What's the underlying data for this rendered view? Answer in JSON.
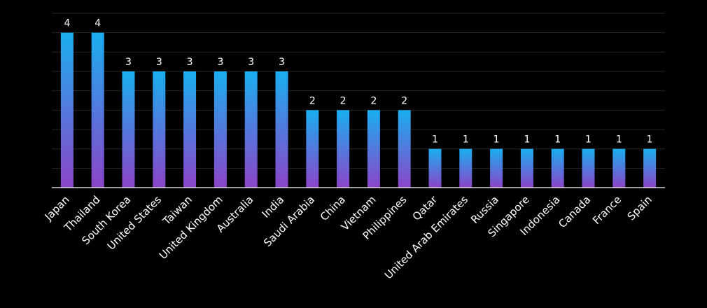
{
  "chart_data": {
    "type": "bar",
    "categories": [
      "Japan",
      "Thailand",
      "South Korea",
      "United States",
      "Taiwan",
      "United Kingdom",
      "Australia",
      "India",
      "Saudi Arabia",
      "China",
      "Vietnam",
      "Philippines",
      "Qatar",
      "United Arab Emirates",
      "Russia",
      "Singapore",
      "Indonesia",
      "Canada",
      "France",
      "Spain"
    ],
    "values": [
      4,
      4,
      3,
      3,
      3,
      3,
      3,
      3,
      2,
      2,
      2,
      2,
      1,
      1,
      1,
      1,
      1,
      1,
      1,
      1
    ],
    "title": "",
    "xlabel": "",
    "ylabel": "",
    "ylim": [
      0,
      4.5
    ],
    "grid": true,
    "gridlines": 9,
    "legend": "none",
    "data_labels": true,
    "colors": {
      "background": "#000000",
      "bar_top": "#1aaef0",
      "bar_bottom": "#8c44c8",
      "grid": "#262626",
      "axis": "#ffffff",
      "text": "#ffffff"
    }
  }
}
